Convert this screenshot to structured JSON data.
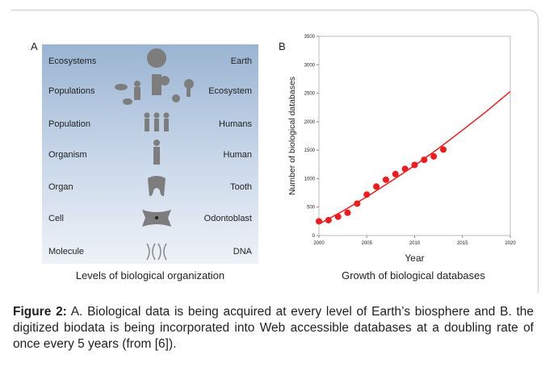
{
  "panel_a": {
    "letter": "A",
    "caption": "Levels of biological organization",
    "left_labels": [
      "Ecosystems",
      "Populations",
      "Population",
      "Organism",
      "Organ",
      "Cell",
      "Molecule"
    ],
    "right_labels": [
      "Earth",
      "Ecosystem",
      "Humans",
      "Human",
      "Tooth",
      "Odontoblast",
      "DNA"
    ]
  },
  "panel_b": {
    "letter": "B",
    "caption": "Growth of biological databases"
  },
  "chart_data": {
    "type": "scatter",
    "xlabel": "Year",
    "ylabel": "Number of biological databases",
    "xlim": [
      2000,
      2020
    ],
    "xticks": [
      2000,
      2005,
      2010,
      2015,
      2020
    ],
    "ylim": [
      0,
      3500
    ],
    "yticks": [
      0,
      500,
      1000,
      1500,
      2000,
      2500,
      3000,
      3500
    ],
    "color": "#ee1c1c",
    "points": {
      "x": [
        2000,
        2001,
        2002,
        2003,
        2004,
        2005,
        2006,
        2007,
        2008,
        2009,
        2010,
        2011,
        2012,
        2013
      ],
      "values": [
        250,
        270,
        330,
        400,
        560,
        720,
        860,
        980,
        1080,
        1170,
        1240,
        1330,
        1390,
        1510
      ]
    },
    "fit": {
      "x": [
        2000,
        2002.5,
        2005,
        2007.5,
        2010,
        2012.5,
        2015,
        2017.5,
        2020
      ],
      "values": [
        200,
        430,
        680,
        950,
        1230,
        1530,
        1850,
        2180,
        2530
      ]
    }
  },
  "figure_caption": {
    "label": "Figure 2:",
    "text": "A. Biological data is being acquired at every level of Earth’s biosphere and B. the digitized biodata is being incorporated into Web accessible databases at a doubling rate of once every 5 years (from [6])."
  }
}
